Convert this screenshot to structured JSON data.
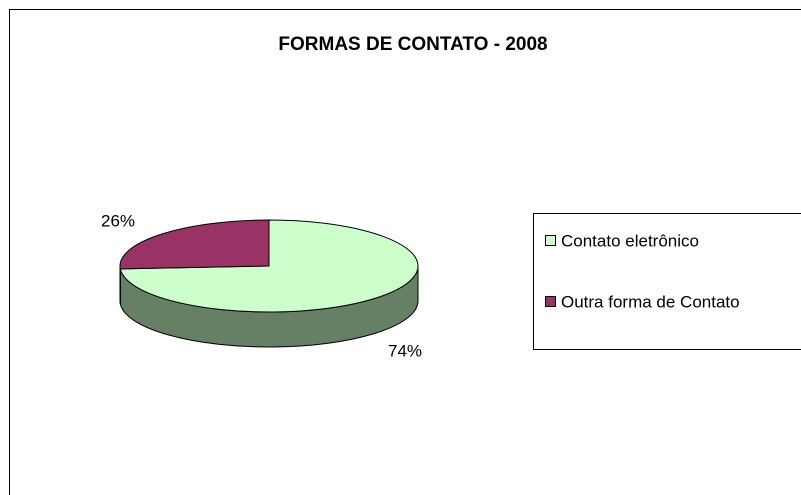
{
  "chart_data": {
    "type": "pie",
    "title": "FORMAS DE CONTATO - 2008",
    "categories": [
      "Contato eletrônico",
      "Outra forma de Contato"
    ],
    "values": [
      74,
      26
    ],
    "value_labels": [
      "74%",
      "26%"
    ],
    "colors": [
      "#ccffcc",
      "#993366"
    ],
    "legend": "right"
  }
}
